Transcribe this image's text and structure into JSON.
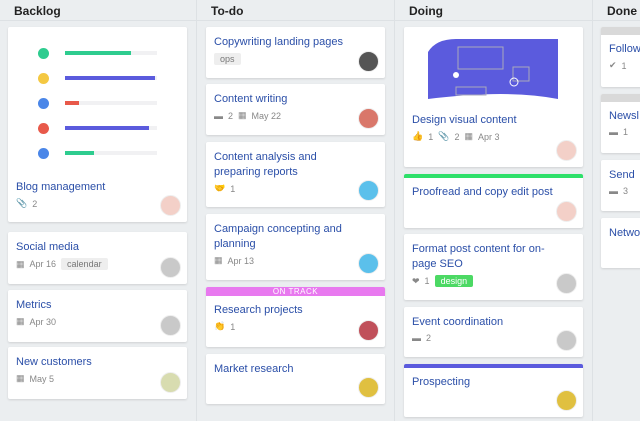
{
  "columns": [
    {
      "title": "Backlog",
      "cards": [
        {
          "title": "Blog management",
          "meta": [
            {
              "icon": "paperclip-icon",
              "text": "2"
            }
          ],
          "avatar": "#f3d0c8",
          "progress": [
            {
              "color": "#2ecc8f",
              "value": 0.72,
              "avatar": "#2ecc8f"
            },
            {
              "color": "#5b5bdd",
              "value": 0.98,
              "avatar": "#f4c842"
            },
            {
              "color": "#e8594a",
              "value": 0.15,
              "avatar": "#4a86e8"
            },
            {
              "color": "#5b5bdd",
              "value": 0.91,
              "avatar": "#e8594a"
            },
            {
              "color": "#2ecc8f",
              "value": 0.31,
              "avatar": "#4a86e8"
            }
          ]
        },
        {
          "title": "Social media",
          "meta": [
            {
              "icon": "calendar-icon",
              "text": "Apr 16"
            }
          ],
          "tags": [
            "calendar"
          ],
          "avatar": "#c9c9c9"
        },
        {
          "title": "Metrics",
          "meta": [
            {
              "icon": "calendar-icon",
              "text": "Apr 30"
            }
          ],
          "avatar": "#c9c9c9"
        },
        {
          "title": "New customers",
          "meta": [
            {
              "icon": "calendar-icon",
              "text": "May 5"
            }
          ],
          "avatar": "#d8dcb0"
        }
      ]
    },
    {
      "title": "To-do",
      "cards": [
        {
          "title": "Copywriting landing pages",
          "tags": [
            "ops"
          ],
          "avatar": "#555"
        },
        {
          "title": "Content writing",
          "meta": [
            {
              "icon": "comment-icon",
              "text": "2"
            },
            {
              "icon": "calendar-icon",
              "text": "May 22"
            }
          ],
          "avatar": "#d9776a"
        },
        {
          "title": "Content analysis and preparing reports",
          "meta": [
            {
              "icon": "handshake-icon",
              "text": "1"
            }
          ],
          "avatar": "#5bc0eb"
        },
        {
          "title": "Campaign concepting and planning",
          "meta": [
            {
              "icon": "calendar-icon",
              "text": "Apr 13"
            }
          ],
          "avatar": "#5bc0eb"
        },
        {
          "title": "Research projects",
          "banner": "ON TRACK",
          "meta": [
            {
              "icon": "clap-icon",
              "text": "1"
            }
          ],
          "avatar": "#c0505a"
        },
        {
          "title": "Market research",
          "avatar": "#e0c040"
        }
      ]
    },
    {
      "title": "Doing",
      "cards": [
        {
          "title": "Design visual content",
          "cover": true,
          "meta": [
            {
              "icon": "thumbs-up-icon",
              "text": "1"
            },
            {
              "icon": "paperclip-icon",
              "text": "2"
            },
            {
              "icon": "calendar-icon",
              "text": "Apr 3"
            }
          ],
          "avatar": "#f3d0c8"
        },
        {
          "title": "Proofread and copy edit post",
          "topbar": "#2ee06a",
          "avatar": "#f3d0c8"
        },
        {
          "title": "Format post content for on-page SEO",
          "meta": [
            {
              "icon": "heart-icon",
              "text": "1"
            }
          ],
          "tags": [
            "design"
          ],
          "tagColor": "green",
          "avatar": "#c9c9c9"
        },
        {
          "title": "Event coordination",
          "meta": [
            {
              "icon": "comment-icon",
              "text": "2"
            }
          ],
          "avatar": "#c9c9c9"
        },
        {
          "title": "Prospecting",
          "topbar": "#5b5bdd",
          "avatar": "#e0c040"
        }
      ]
    },
    {
      "title": "Done",
      "cards": [
        {
          "title": "Follow",
          "greybar": true,
          "meta": [
            {
              "icon": "check-circle-icon",
              "text": "1"
            }
          ]
        },
        {
          "title": "Newsl",
          "greybar": true,
          "meta": [
            {
              "icon": "comment-icon",
              "text": "1"
            }
          ]
        },
        {
          "title": "Send",
          "meta": [
            {
              "icon": "comment-icon",
              "text": "3"
            }
          ]
        },
        {
          "title": "Netwo"
        }
      ]
    }
  ],
  "icons": {
    "paperclip-icon": "📎",
    "calendar-icon": "▦",
    "comment-icon": "▬",
    "handshake-icon": "🤝",
    "clap-icon": "👏",
    "thumbs-up-icon": "👍",
    "heart-icon": "❤",
    "check-circle-icon": "✔"
  }
}
